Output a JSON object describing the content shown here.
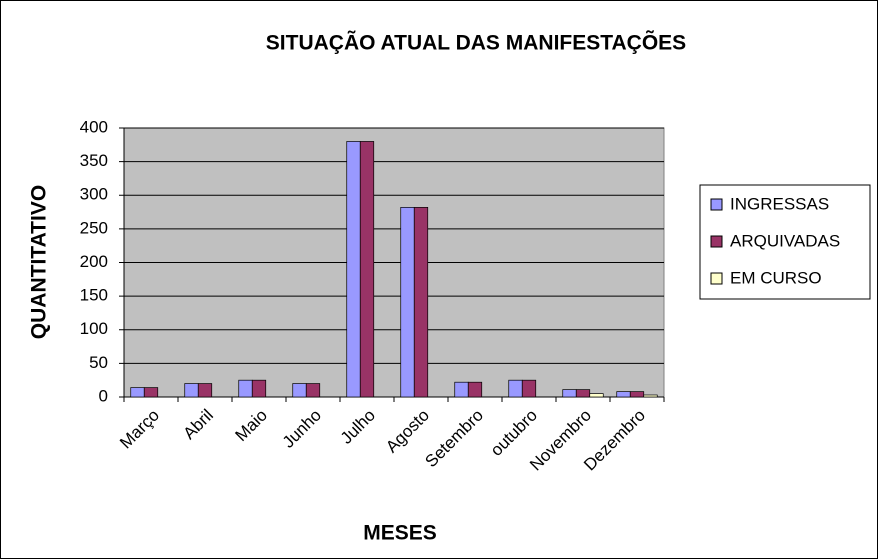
{
  "chart_data": {
    "type": "bar",
    "title": "SITUAÇÃO ATUAL DAS MANIFESTAÇÕES",
    "xlabel": "MESES",
    "ylabel": "QUANTITATIVO",
    "categories": [
      "Março",
      "Abril",
      "Maio",
      "Junho",
      "Julho",
      "Agosto",
      "Setembro",
      "outubro",
      "Novembro",
      "Dezembro"
    ],
    "series": [
      {
        "name": "INGRESSAS",
        "color": "#9999ff",
        "values": [
          14,
          20,
          25,
          20,
          380,
          282,
          22,
          25,
          11,
          8
        ]
      },
      {
        "name": "ARQUIVADAS",
        "color": "#993366",
        "values": [
          14,
          20,
          25,
          20,
          380,
          282,
          22,
          25,
          11,
          8
        ]
      },
      {
        "name": "EM CURSO",
        "color": "#ffffcc",
        "values": [
          0,
          0,
          0,
          0,
          0,
          0,
          0,
          0,
          5,
          3
        ]
      }
    ],
    "ylim": [
      0,
      400
    ],
    "yticks": [
      0,
      50,
      100,
      150,
      200,
      250,
      300,
      350,
      400
    ],
    "grid": true,
    "legend": "right"
  }
}
